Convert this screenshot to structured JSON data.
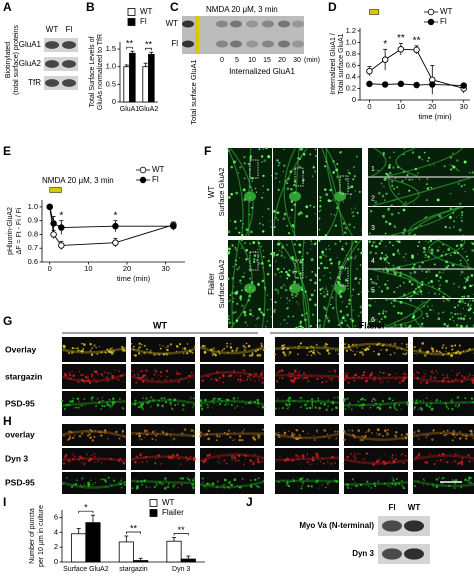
{
  "panels": {
    "A": {
      "letter": "A",
      "side_label": [
        "Biotinylated",
        "(total surface) proteins"
      ],
      "columns": [
        "WT",
        "Fl"
      ],
      "rows": [
        "GluA1",
        "GluA2",
        "TfR"
      ]
    },
    "B": {
      "letter": "B"
    },
    "C": {
      "letter": "C",
      "treatment": "NMDA 20 μM, 3 min",
      "rows": [
        "WT",
        "Fl"
      ],
      "times": [
        "0",
        "5",
        "10",
        "15",
        "20",
        "30",
        "(min)"
      ],
      "total_label": "Total surface GluA1",
      "internalized_label": "Internalized GluA1"
    },
    "D": {
      "letter": "D"
    },
    "E": {
      "letter": "E"
    },
    "F": {
      "letter": "F",
      "groups": [
        {
          "name": "WT",
          "stain": "Surface GluA2"
        },
        {
          "name": "Flailer",
          "stain": "Surface GluA2"
        }
      ],
      "insets": [
        "1",
        "2",
        "3",
        "4",
        "5",
        "6"
      ]
    },
    "G": {
      "letter": "G",
      "headers": [
        "WT",
        "Flailer"
      ],
      "rows": [
        "Overlay",
        "stargazin",
        "PSD-95"
      ]
    },
    "H": {
      "letter": "H",
      "rows": [
        "overlay",
        "Dyn 3",
        "PSD-95"
      ]
    },
    "I": {
      "letter": "I"
    },
    "J": {
      "letter": "J",
      "columns": [
        "Fl",
        "WT"
      ],
      "rows": [
        "Myo Va (N-terminal)",
        "Dyn 3"
      ]
    }
  },
  "chart_data": [
    {
      "panel": "B",
      "type": "bar",
      "ylabel": [
        "Total Surface Levels of",
        "GluAs normalized to TfR"
      ],
      "categories": [
        "GluA1",
        "GluA2"
      ],
      "series": [
        {
          "name": "WT",
          "color": "#ffffff",
          "values": [
            1.0,
            1.0
          ],
          "errors": [
            0.05,
            0.1
          ]
        },
        {
          "name": "Fl",
          "color": "#000000",
          "values": [
            1.38,
            1.35
          ],
          "errors": [
            0.06,
            0.06
          ]
        }
      ],
      "ylim": [
        0,
        1.7
      ],
      "yticks": [
        0,
        0.5,
        {
          "value": 1,
          "label": "1.0"
        },
        1.5
      ],
      "annotations": [
        "**",
        "**"
      ]
    },
    {
      "panel": "D",
      "type": "line",
      "ylabel": [
        "Internalized GluA1 /",
        "Total surface GluA1"
      ],
      "xlabel": "time (min)",
      "x": [
        0,
        5,
        10,
        15,
        20,
        30
      ],
      "series": [
        {
          "name": "WT",
          "color": "#000000",
          "marker_fill": "#ffffff",
          "values": [
            0.5,
            0.7,
            0.88,
            0.87,
            0.35,
            0.2
          ],
          "errors": [
            0.08,
            0.18,
            0.1,
            0.07,
            0.25,
            0.08
          ]
        },
        {
          "name": "Fl",
          "color": "#000000",
          "marker_fill": "#000000",
          "values": [
            0.28,
            0.27,
            0.28,
            0.26,
            0.27,
            0.25
          ],
          "errors": [
            0.03,
            0.03,
            0.03,
            0.03,
            0.03,
            0.03
          ]
        }
      ],
      "xlim": [
        -3,
        32
      ],
      "xticks": [
        0,
        10,
        20,
        30
      ],
      "ylim": [
        0,
        1.25
      ],
      "yticks": [
        0,
        0.2,
        0.4,
        0.6,
        0.8,
        {
          "value": 1,
          "label": "1.0"
        },
        1.2
      ],
      "annotations": [
        "*",
        "**",
        "**"
      ]
    },
    {
      "panel": "E",
      "type": "line",
      "title": "NMDA 20 μM, 3 min",
      "ylabel": [
        "pHluorin-GluA2",
        "ΔF = Ft - Fi / Fi"
      ],
      "xlabel": "time (min)",
      "x": [
        0,
        1,
        3,
        17,
        32
      ],
      "series": [
        {
          "name": "WT",
          "color": "#000000",
          "marker_fill": "#ffffff",
          "values": [
            1.0,
            0.8,
            0.72,
            0.74,
            0.87
          ],
          "errors": [
            0,
            0.03,
            0.03,
            0.03,
            0.02
          ]
        },
        {
          "name": "Fl",
          "color": "#000000",
          "marker_fill": "#000000",
          "values": [
            1.0,
            0.88,
            0.85,
            0.86,
            0.86
          ],
          "errors": [
            0,
            0.05,
            0.05,
            0.04,
            0.03
          ]
        }
      ],
      "xlim": [
        -2,
        35
      ],
      "xticks": [
        0,
        10,
        20,
        30
      ],
      "ylim": [
        0.6,
        1.05
      ],
      "yticks": [
        0.6,
        0.7,
        0.8,
        0.9,
        {
          "value": 1,
          "label": "1.0"
        }
      ],
      "annotations": [
        "*",
        "*"
      ]
    },
    {
      "panel": "I",
      "type": "bar",
      "ylabel": [
        "Number of puncta",
        "per 10 μm in culture"
      ],
      "categories": [
        "Surface GluA2",
        "stargazin",
        "Dyn 3"
      ],
      "series": [
        {
          "name": "WT",
          "color": "#ffffff",
          "values": [
            3.8,
            2.7,
            2.8
          ],
          "errors": [
            0.7,
            0.8,
            0.5
          ]
        },
        {
          "name": "Flailer",
          "color": "#000000",
          "values": [
            5.3,
            0.2,
            0.4
          ],
          "errors": [
            1.0,
            0.3,
            0.4
          ]
        }
      ],
      "ylim": [
        0,
        7
      ],
      "yticks": [
        0,
        2,
        4,
        6
      ],
      "annotations": [
        "*",
        "**",
        "**"
      ]
    }
  ]
}
